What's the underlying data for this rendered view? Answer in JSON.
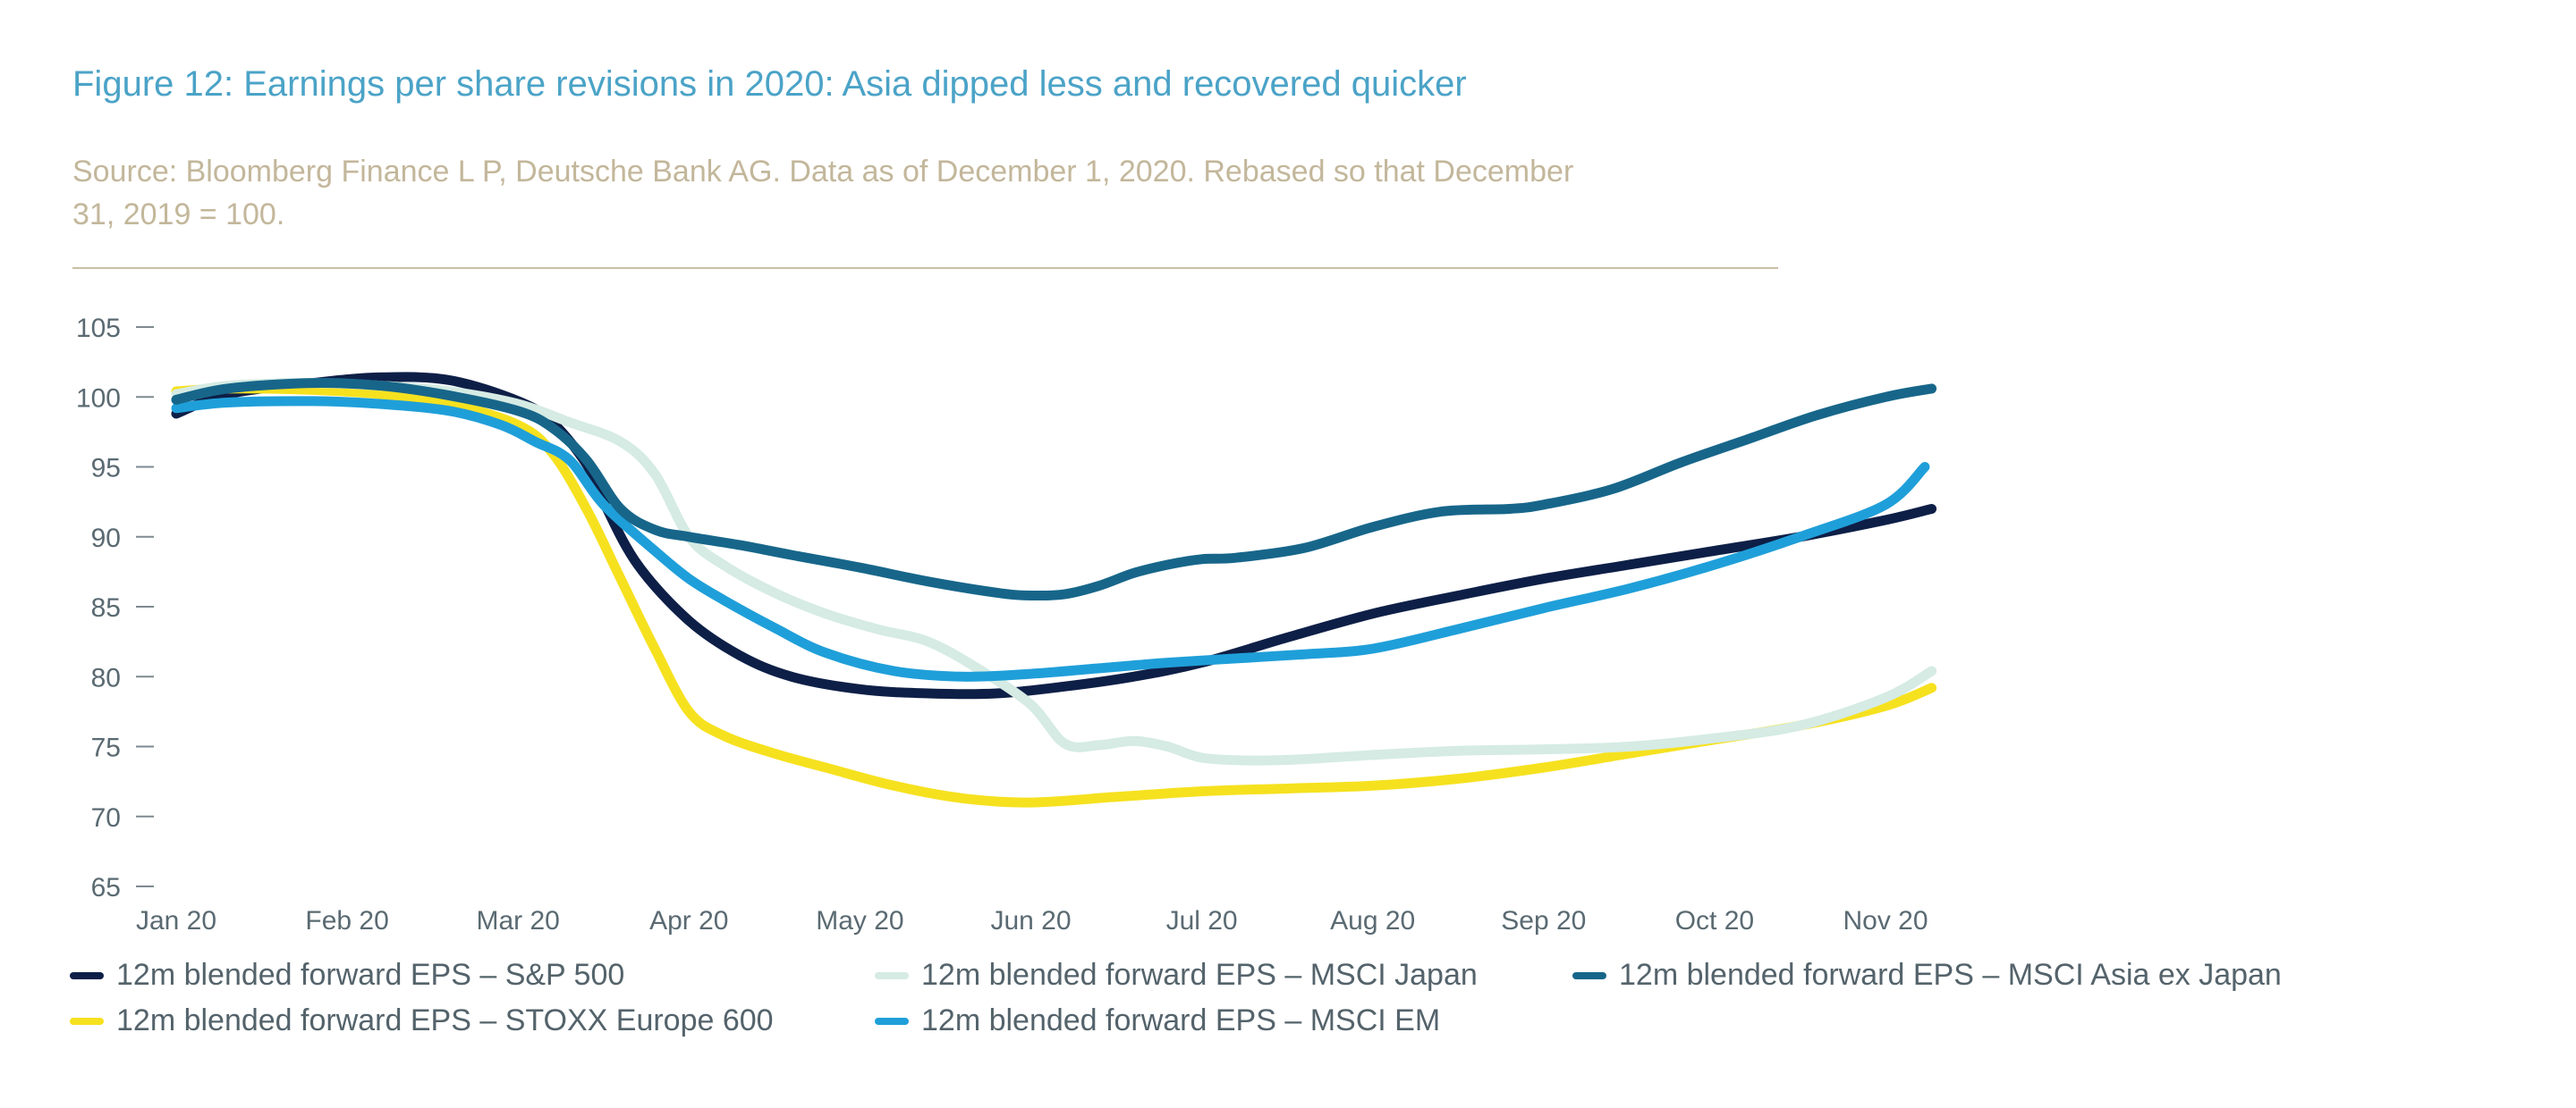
{
  "title": "Figure 12: Earnings per share revisions in 2020: Asia dipped less and recovered quicker",
  "source": "Source: Bloomberg Finance L P, Deutsche Bank AG. Data as of December 1, 2020. Rebased so that December 31, 2019 = 100.",
  "chart_data": {
    "type": "line",
    "title": "Figure 12: Earnings per share revisions in 2020: Asia dipped less and recovered quicker",
    "xlabel": "",
    "ylabel": "",
    "categories": [
      "Jan 20",
      "Feb 20",
      "Mar 20",
      "Apr 20",
      "May 20",
      "Jun 20",
      "Jul 20",
      "Aug 20",
      "Sep 20",
      "Oct 20",
      "Nov 20"
    ],
    "ylim": [
      65,
      105
    ],
    "yticks": [
      105,
      100,
      95,
      90,
      85,
      80,
      75,
      70,
      65
    ],
    "xlim": [
      0,
      10.27
    ],
    "grid": false,
    "legend_position": "bottom",
    "series": [
      {
        "name": "12m blended forward EPS – S&P 500",
        "color": "#0e1f47",
        "x": [
          0,
          0.3,
          0.8,
          1.2,
          1.6,
          2.0,
          2.2,
          2.4,
          2.5,
          2.7,
          3.0,
          3.3,
          3.6,
          4.0,
          4.4,
          4.8,
          5.2,
          5.6,
          6.0,
          6.5,
          7.0,
          7.5,
          8.0,
          8.5,
          9.0,
          9.5,
          10.0,
          10.27
        ],
        "values": [
          98.8,
          100.2,
          101.0,
          101.4,
          101.2,
          99.7,
          98.2,
          95.2,
          92.5,
          88.0,
          84.0,
          81.5,
          80.0,
          79.1,
          78.8,
          78.8,
          79.3,
          80.0,
          81.0,
          82.8,
          84.5,
          85.8,
          87.0,
          88.0,
          89.0,
          90.0,
          91.2,
          92.0
        ]
      },
      {
        "name": "12m blended forward EPS – STOXX Europe 600",
        "color": "#f6e11f",
        "x": [
          0,
          0.3,
          0.8,
          1.2,
          1.6,
          2.0,
          2.2,
          2.4,
          2.6,
          2.8,
          3.0,
          3.2,
          3.5,
          3.8,
          4.2,
          4.6,
          5.0,
          5.5,
          6.0,
          6.5,
          7.0,
          7.5,
          8.0,
          8.5,
          9.0,
          9.5,
          10.0,
          10.27
        ],
        "values": [
          100.4,
          100.6,
          100.5,
          100.2,
          99.5,
          98.0,
          96.0,
          92.0,
          87.0,
          82.0,
          77.5,
          75.8,
          74.5,
          73.5,
          72.2,
          71.3,
          71.0,
          71.4,
          71.8,
          72.0,
          72.2,
          72.7,
          73.5,
          74.5,
          75.5,
          76.5,
          77.9,
          79.2
        ]
      },
      {
        "name": "12m blended forward EPS – MSCI Japan",
        "color": "#d5ebe4",
        "x": [
          0,
          0.3,
          0.8,
          1.2,
          1.6,
          2.0,
          2.3,
          2.6,
          2.8,
          3.0,
          3.2,
          3.5,
          3.8,
          4.1,
          4.4,
          4.7,
          5.0,
          5.2,
          5.4,
          5.6,
          5.8,
          6.0,
          6.3,
          6.6,
          7.0,
          7.5,
          8.0,
          8.5,
          9.0,
          9.5,
          10.0,
          10.27
        ],
        "values": [
          100.2,
          100.8,
          101.0,
          100.8,
          100.4,
          99.5,
          98.2,
          96.8,
          94.5,
          90.0,
          88.0,
          86.0,
          84.5,
          83.4,
          82.5,
          80.5,
          78.0,
          75.2,
          75.1,
          75.4,
          75.0,
          74.2,
          74.0,
          74.1,
          74.4,
          74.7,
          74.8,
          75.0,
          75.6,
          76.5,
          78.5,
          80.4
        ]
      },
      {
        "name": "12m blended forward EPS – MSCI EM",
        "color": "#1f9fd9",
        "x": [
          0,
          0.3,
          0.8,
          1.2,
          1.6,
          1.9,
          2.1,
          2.3,
          2.5,
          2.8,
          3.0,
          3.2,
          3.5,
          3.8,
          4.2,
          4.6,
          5.0,
          5.4,
          5.8,
          6.2,
          6.6,
          7.0,
          7.5,
          8.0,
          8.5,
          9.0,
          9.5,
          10.0,
          10.23
        ],
        "values": [
          99.2,
          99.6,
          99.7,
          99.5,
          99.0,
          98.0,
          96.8,
          95.5,
          92.3,
          89.0,
          87.0,
          85.5,
          83.5,
          81.7,
          80.4,
          80.0,
          80.2,
          80.6,
          81.0,
          81.3,
          81.6,
          82.0,
          83.4,
          84.9,
          86.3,
          88.0,
          90.0,
          92.3,
          95.0
        ]
      },
      {
        "name": "12m blended forward EPS – MSCI Asia ex Japan",
        "color": "#17668a",
        "x": [
          0,
          0.3,
          0.8,
          1.2,
          1.6,
          2.0,
          2.2,
          2.4,
          2.6,
          2.8,
          3.0,
          3.3,
          3.6,
          4.0,
          4.4,
          4.8,
          5.0,
          5.2,
          5.4,
          5.6,
          5.8,
          6.0,
          6.2,
          6.6,
          7.0,
          7.4,
          7.8,
          8.0,
          8.4,
          8.8,
          9.2,
          9.6,
          10.0,
          10.27
        ],
        "values": [
          99.8,
          100.6,
          101.0,
          100.8,
          100.1,
          99.0,
          97.8,
          95.5,
          92.0,
          90.5,
          90.0,
          89.4,
          88.7,
          87.8,
          86.8,
          86.0,
          85.8,
          85.9,
          86.5,
          87.4,
          88.0,
          88.4,
          88.5,
          89.2,
          90.7,
          91.8,
          92.0,
          92.3,
          93.4,
          95.3,
          97.0,
          98.7,
          100.0,
          100.6
        ]
      }
    ]
  },
  "legend": {
    "items": [
      {
        "label": "12m blended forward EPS – S&P 500",
        "color": "#0e1f47"
      },
      {
        "label": "12m blended forward EPS – MSCI Japan",
        "color": "#d5ebe4"
      },
      {
        "label": "12m blended forward EPS – MSCI Asia ex Japan",
        "color": "#17668a"
      },
      {
        "label": "12m blended forward EPS – STOXX Europe 600",
        "color": "#f6e11f"
      },
      {
        "label": "12m blended forward EPS – MSCI EM",
        "color": "#1f9fd9"
      }
    ]
  }
}
